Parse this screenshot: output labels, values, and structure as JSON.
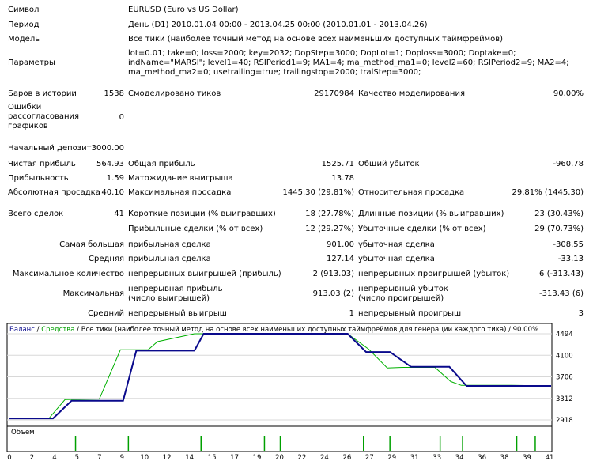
{
  "report": {
    "symbol_label": "Символ",
    "symbol_value": "EURUSD (Euro vs US Dollar)",
    "period_label": "Период",
    "period_value": "День (D1) 2010.01.04 00:00 - 2013.04.25 00:00 (2010.01.01 - 2013.04.26)",
    "model_label": "Модель",
    "model_value": "Все тики (наиболее точный метод на основе всех наименьших доступных таймфреймов)",
    "params_label": "Параметры",
    "params_value": "lot=0.01; take=0; loss=2000; key=2032; DopStep=3000; DopLot=1; Doploss=3000; Doptake=0; indName=\"MARSI\"; level1=40; RSIPeriod1=9; MA1=4; ma_method_ma1=0; level2=60; RSIPeriod2=9; MA2=4; ma_method_ma2=0; usetrailing=true; trailingstop=2000; tralStep=3000;",
    "bars_label": "Баров в истории",
    "bars_value": "1538",
    "ticks_label": "Смоделировано тиков",
    "ticks_value": "29170984",
    "quality_label": "Качество моделирования",
    "quality_value": "90.00%",
    "errors_label": "Ошибки рассогласования графиков",
    "errors_value": "0",
    "deposit_label": "Начальный депозит",
    "deposit_value": "3000.00",
    "net_label": "Чистая прибыль",
    "net_value": "564.93",
    "gross_profit_label": "Общая прибыль",
    "gross_profit_value": "1525.71",
    "gross_loss_label": "Общий убыток",
    "gross_loss_value": "-960.78",
    "pf_label": "Прибыльность",
    "pf_value": "1.59",
    "expect_label": "Матожидание выигрыша",
    "expect_value": "13.78",
    "abs_dd_label": "Абсолютная просадка",
    "abs_dd_value": "40.10",
    "max_dd_label": "Максимальная просадка",
    "max_dd_value": "1445.30 (29.81%)",
    "rel_dd_label": "Относительная просадка",
    "rel_dd_value": "29.81% (1445.30)",
    "total_label": "Всего сделок",
    "total_value": "41",
    "short_label": "Короткие позиции (% выигравших)",
    "short_value": "18 (27.78%)",
    "long_label": "Длинные позиции (% выигравших)",
    "long_value": "23 (30.43%)",
    "profit_trades_label": "Прибыльные сделки (% от всех)",
    "profit_trades_value": "12 (29.27%)",
    "loss_trades_label": "Убыточные сделки (% от всех)",
    "loss_trades_value": "29 (70.73%)",
    "largest_label": "Самая большая",
    "largest_profit_label": "прибыльная сделка",
    "largest_profit_value": "901.00",
    "largest_loss_label": "убыточная сделка",
    "largest_loss_value": "-308.55",
    "average_label": "Средняя",
    "avg_profit_label": "прибыльная сделка",
    "avg_profit_value": "127.14",
    "avg_loss_label": "убыточная сделка",
    "avg_loss_value": "-33.13",
    "max_count_label": "Максимальное количество",
    "max_wins_label": "непрерывных выигрышей (прибыль)",
    "max_wins_value": "2 (913.03)",
    "max_losses_label": "непрерывных проигрышей (убыток)",
    "max_losses_value": "6 (-313.43)",
    "maximal_label": "Максимальная",
    "max_profit_label": "непрерывная прибыль (число выигрышей)",
    "max_profit_value": "913.03 (2)",
    "max_loss_label": "непрерывный убыток (число проигрышей)",
    "max_loss_value": "-313.43 (6)",
    "avg_cons_label": "Средний",
    "avg_wins_label": "непрерывный выигрыш",
    "avg_wins_value": "1",
    "avg_losses_label": "непрерывный проигрыш",
    "avg_losses_value": "3"
  },
  "chart_data": {
    "type": "line",
    "legend_balance": "Баланс",
    "legend_sep": " / ",
    "legend_equity": "Средства",
    "legend_rest": " / Все тики (наиболее точный метод на основе всех наименьших доступных таймфреймов для генерации каждого тика) / 90.00%",
    "volume_label": "Объём",
    "x_ticks": [
      "0",
      "2",
      "4",
      "5",
      "7",
      "9",
      "10",
      "12",
      "14",
      "15",
      "17",
      "19",
      "20",
      "22",
      "24",
      "26",
      "27",
      "29",
      "31",
      "33",
      "34",
      "36",
      "38",
      "39",
      "41"
    ],
    "y_ticks": [
      "4494",
      "4100",
      "3706",
      "3312",
      "2918"
    ],
    "ylim": [
      2918,
      4494
    ],
    "xlim": [
      0,
      41
    ],
    "series": [
      {
        "name": "Баланс",
        "color": "#0a0a8c",
        "x": [
          0,
          3.3,
          4.7,
          8.6,
          9.6,
          14.0,
          14.7,
          25.6,
          27.0,
          28.8,
          30.4,
          33.3,
          34.6,
          38.0,
          41.0
        ],
        "y": [
          2945,
          2945,
          3270,
          3270,
          4185,
          4185,
          4494,
          4494,
          4160,
          4160,
          3890,
          3890,
          3540,
          3540,
          3540
        ]
      },
      {
        "name": "Средства",
        "color": "#00b000",
        "x": [
          0,
          3.0,
          4.2,
          6.8,
          8.4,
          9.0,
          10.5,
          11.2,
          14.0,
          14.7,
          25.6,
          27.2,
          28.6,
          29.8,
          32.2,
          33.4,
          34.2,
          38.0,
          41.0
        ],
        "y": [
          2950,
          2950,
          3290,
          3300,
          4200,
          4200,
          4200,
          4350,
          4494,
          4494,
          4494,
          4210,
          3870,
          3880,
          3880,
          3620,
          3550,
          3550,
          3540
        ]
      }
    ],
    "volume_x": [
      5.0,
      9.0,
      14.5,
      19.3,
      20.5,
      26.8,
      28.8,
      32.6,
      34.3,
      38.4,
      39.8
    ]
  }
}
